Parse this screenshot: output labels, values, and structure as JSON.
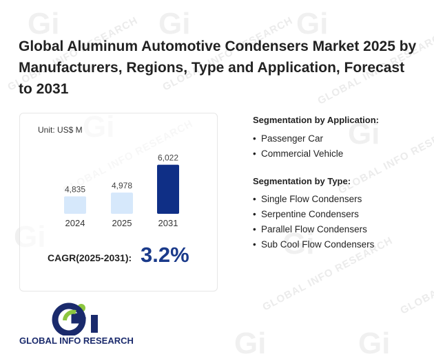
{
  "title": "Global Aluminum Automotive Condensers Market 2025 by Manufacturers, Regions, Type and Application, Forecast to 2031",
  "unit_label": "Unit: US$ M",
  "cagr": {
    "label": "CAGR(2025-2031):",
    "value": "3.2%"
  },
  "segments": {
    "application_title": "Segmentation by Application:",
    "application": [
      "Passenger Car",
      "Commercial Vehicle"
    ],
    "type_title": "Segmentation by Type:",
    "type": [
      "Single Flow Condensers",
      "Serpentine Condensers",
      "Parallel Flow Condensers",
      "Sub Cool Flow Condensers"
    ]
  },
  "logo": {
    "name": "GLOBAL INFO RESEARCH",
    "mark": "Gi"
  },
  "watermark": "GLOBAL INFO RESEARCH",
  "colors": {
    "bar_light": "#d6e8fb",
    "bar_dark": "#0f2f86",
    "cagr": "#1a3a8a",
    "logo_green": "#8cc63f",
    "logo_blue": "#1a2a6c"
  },
  "chart_data": {
    "type": "bar",
    "categories": [
      "2024",
      "2025",
      "2031"
    ],
    "values": [
      4835,
      4978,
      6022
    ],
    "value_labels": [
      "4,835",
      "4,978",
      "6,022"
    ],
    "highlight": "2031",
    "ylabel": "",
    "xlabel": "",
    "grid": false,
    "legend": "none"
  }
}
